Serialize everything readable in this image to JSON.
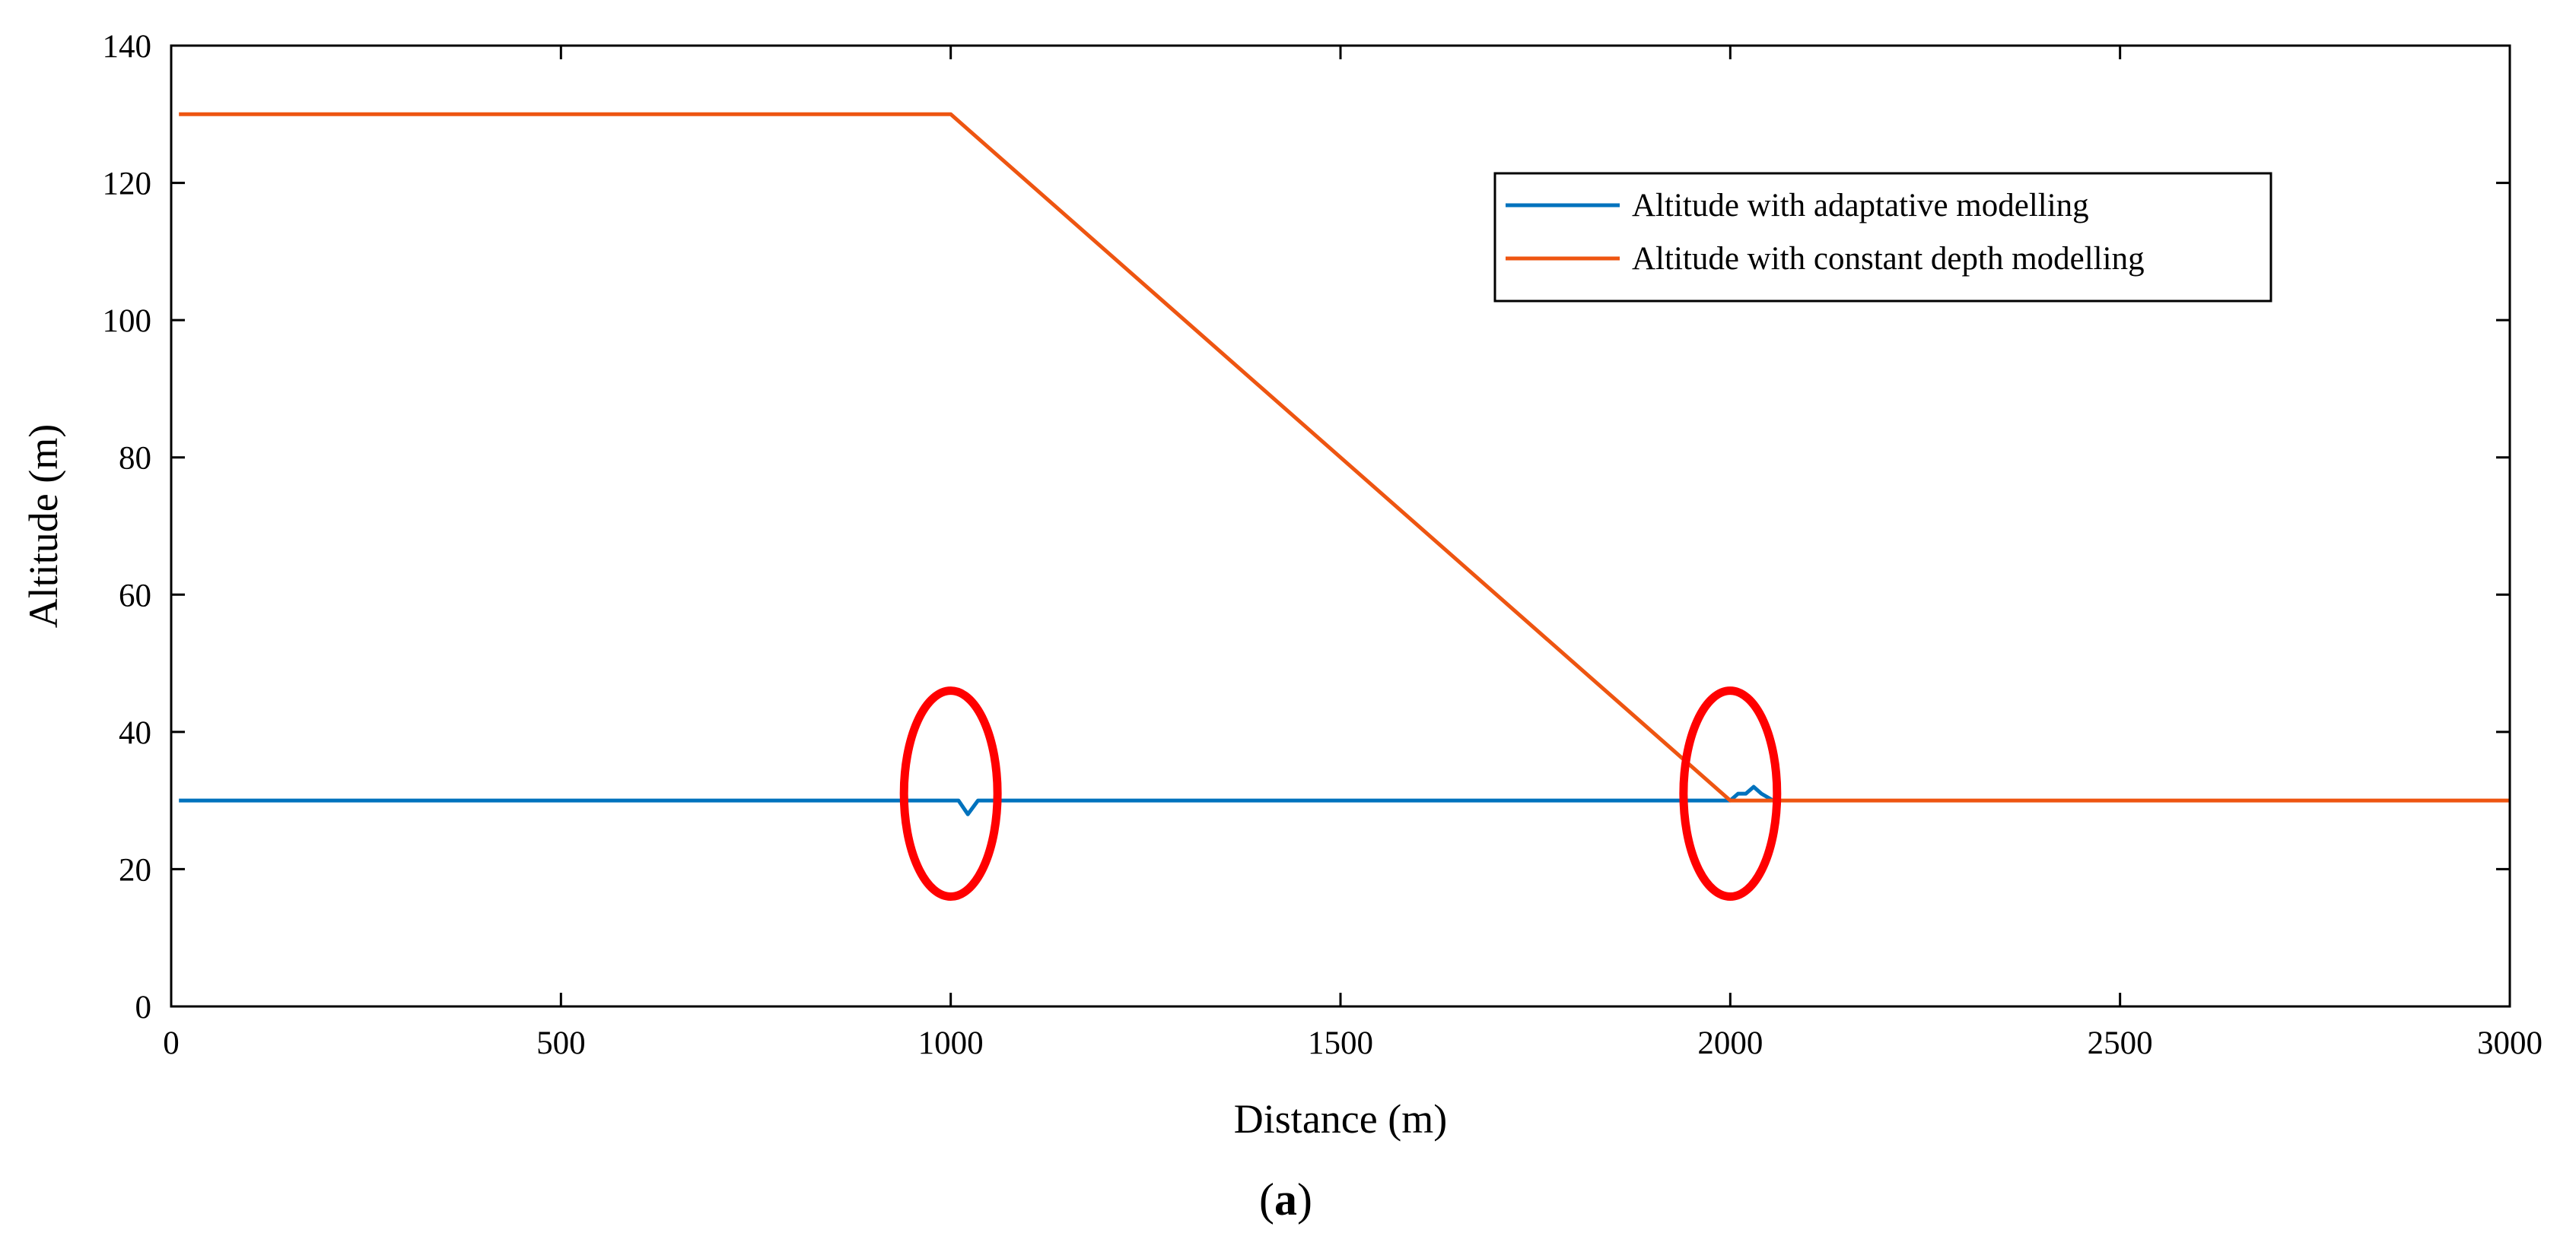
{
  "chart_data": {
    "type": "line",
    "title": "",
    "xlabel": "Distance (m)",
    "ylabel": "Altitude (m)",
    "xlim": [
      0,
      3000
    ],
    "ylim": [
      0,
      140
    ],
    "xticks": [
      0,
      500,
      1000,
      1500,
      2000,
      2500,
      3000
    ],
    "yticks": [
      0,
      20,
      40,
      60,
      80,
      100,
      120,
      140
    ],
    "grid": false,
    "legend_position": "top-right",
    "series": [
      {
        "name": "Altitude with adaptative modelling",
        "color": "#0072BD",
        "x": [
          10,
          1000,
          1010,
          1022,
          1035,
          2000,
          2010,
          2020,
          2030,
          2040,
          2055
        ],
        "y": [
          30,
          30,
          30,
          28,
          30,
          30,
          31,
          31,
          32,
          31,
          30
        ]
      },
      {
        "name": "Altitude with constant depth modelling",
        "color": "#EE5511",
        "x": [
          10,
          1000,
          2000,
          3000
        ],
        "y": [
          130,
          130,
          30,
          30
        ]
      }
    ],
    "annotations": [
      {
        "shape": "ellipse",
        "color": "#FF0000",
        "cx": 1000,
        "cy": 31,
        "rx": 60,
        "ry": 15
      },
      {
        "shape": "ellipse",
        "color": "#FF0000",
        "cx": 2000,
        "cy": 31,
        "rx": 60,
        "ry": 15
      }
    ]
  },
  "caption": {
    "label": "a",
    "open_paren": "(",
    "close_paren": ")"
  }
}
